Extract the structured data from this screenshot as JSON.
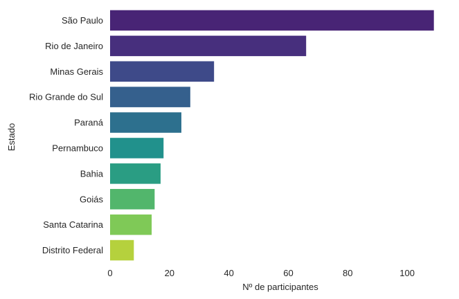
{
  "chart_data": {
    "type": "bar",
    "orientation": "horizontal",
    "categories": [
      "São Paulo",
      "Rio de Janeiro",
      "Minas Gerais",
      "Rio Grande do Sul",
      "Paraná",
      "Pernambuco",
      "Bahia",
      "Goiás",
      "Santa Catarina",
      "Distrito Federal"
    ],
    "values": [
      109,
      66,
      35,
      27,
      24,
      18,
      17,
      15,
      14,
      8
    ],
    "colors": [
      "#482475",
      "#472f7d",
      "#3e4a89",
      "#35608d",
      "#2d708e",
      "#21918c",
      "#2a9d83",
      "#52b66c",
      "#7fc957",
      "#b5d13d"
    ],
    "xlabel": "Nº de participantes",
    "ylabel": "Estado",
    "xlim": [
      0,
      110
    ],
    "xticks": [
      0,
      20,
      40,
      60,
      80,
      100
    ],
    "grid": false
  }
}
